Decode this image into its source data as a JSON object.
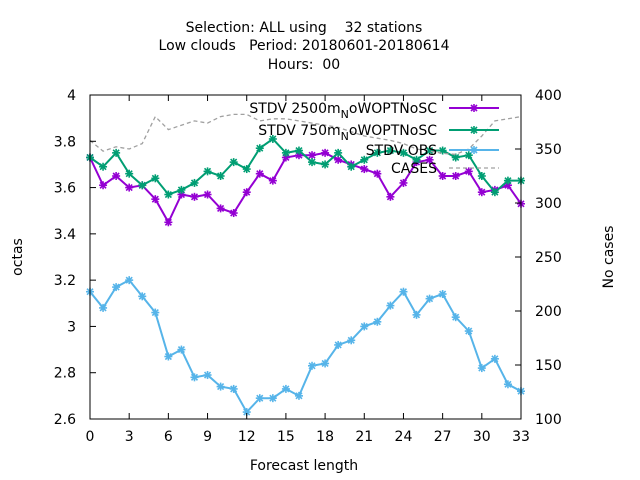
{
  "chart_data": {
    "type": "line",
    "title_lines": [
      "Selection: ALL using    32 stations",
      "Low clouds   Period: 20180601-20180614",
      "Hours:  00"
    ],
    "xlabel": "Forecast length",
    "ylabel": "octas",
    "y2label": "No cases",
    "xlim": [
      0,
      33
    ],
    "ylim": [
      2.6,
      4.0
    ],
    "y2lim": [
      100,
      400
    ],
    "x_ticks": [
      0,
      3,
      6,
      9,
      12,
      15,
      18,
      21,
      24,
      27,
      30,
      33
    ],
    "y_ticks": [
      2.6,
      2.8,
      3,
      3.2,
      3.4,
      3.6,
      3.8,
      4
    ],
    "y_tick_labels": [
      "2.6",
      "2.8",
      "3",
      "3.2",
      "3.4",
      "3.6",
      "3.8",
      "4"
    ],
    "y2_ticks": [
      100,
      150,
      200,
      250,
      300,
      350,
      400
    ],
    "legend_position": "top-right",
    "x": [
      0,
      1,
      2,
      3,
      4,
      5,
      6,
      7,
      8,
      9,
      10,
      11,
      12,
      13,
      14,
      15,
      16,
      17,
      18,
      19,
      20,
      21,
      22,
      23,
      24,
      25,
      26,
      27,
      28,
      29,
      30,
      31,
      32,
      33
    ],
    "series": [
      {
        "name": "STDV 2500m_N oWOPTNoSC",
        "legend_label": "STDV 2500m",
        "legend_sub": "N",
        "legend_rest": "oWOPTNoSC",
        "axis": "y",
        "color": "#9400d3",
        "marker": "star",
        "values": [
          3.73,
          3.61,
          3.65,
          3.6,
          3.61,
          3.55,
          3.45,
          3.57,
          3.56,
          3.57,
          3.51,
          3.49,
          3.58,
          3.66,
          3.63,
          3.73,
          3.74,
          3.74,
          3.75,
          3.72,
          3.7,
          3.68,
          3.66,
          3.56,
          3.62,
          3.71,
          3.72,
          3.65,
          3.65,
          3.67,
          3.58,
          3.59,
          3.61,
          3.53
        ]
      },
      {
        "name": "STDV 750m_N oWOPTNoSC",
        "legend_label": "STDV 750m",
        "legend_sub": "N",
        "legend_rest": "oWOPTNoSC",
        "axis": "y",
        "color": "#009e73",
        "marker": "star",
        "values": [
          3.73,
          3.69,
          3.75,
          3.66,
          3.61,
          3.64,
          3.57,
          3.59,
          3.62,
          3.67,
          3.65,
          3.71,
          3.68,
          3.77,
          3.81,
          3.75,
          3.76,
          3.71,
          3.7,
          3.75,
          3.69,
          3.72,
          3.75,
          3.76,
          3.75,
          3.72,
          3.76,
          3.76,
          3.73,
          3.74,
          3.65,
          3.58,
          3.63,
          3.63
        ]
      },
      {
        "name": "STDV OBS",
        "legend_label": "STDV OBS",
        "legend_sub": "",
        "legend_rest": "",
        "axis": "y",
        "color": "#56b4e9",
        "marker": "star",
        "values": [
          3.15,
          3.08,
          3.17,
          3.2,
          3.13,
          3.06,
          2.87,
          2.9,
          2.78,
          2.79,
          2.74,
          2.73,
          2.63,
          2.69,
          2.69,
          2.73,
          2.7,
          2.83,
          2.84,
          2.92,
          2.94,
          3.0,
          3.02,
          3.09,
          3.15,
          3.05,
          3.12,
          3.14,
          3.04,
          2.98,
          2.82,
          2.86,
          2.75,
          2.72
        ]
      },
      {
        "name": "CASES",
        "legend_label": "CASES",
        "legend_sub": "",
        "legend_rest": "",
        "axis": "y2",
        "color": "#a0a0a0",
        "marker": "none",
        "dashed": true,
        "values": [
          358,
          348,
          352,
          350,
          355,
          380,
          368,
          372,
          376,
          374,
          380,
          382,
          382,
          376,
          378,
          378,
          376,
          374,
          372,
          370,
          366,
          362,
          360,
          358,
          355,
          350,
          348,
          346,
          345,
          350,
          362,
          376,
          378,
          380
        ]
      }
    ]
  }
}
